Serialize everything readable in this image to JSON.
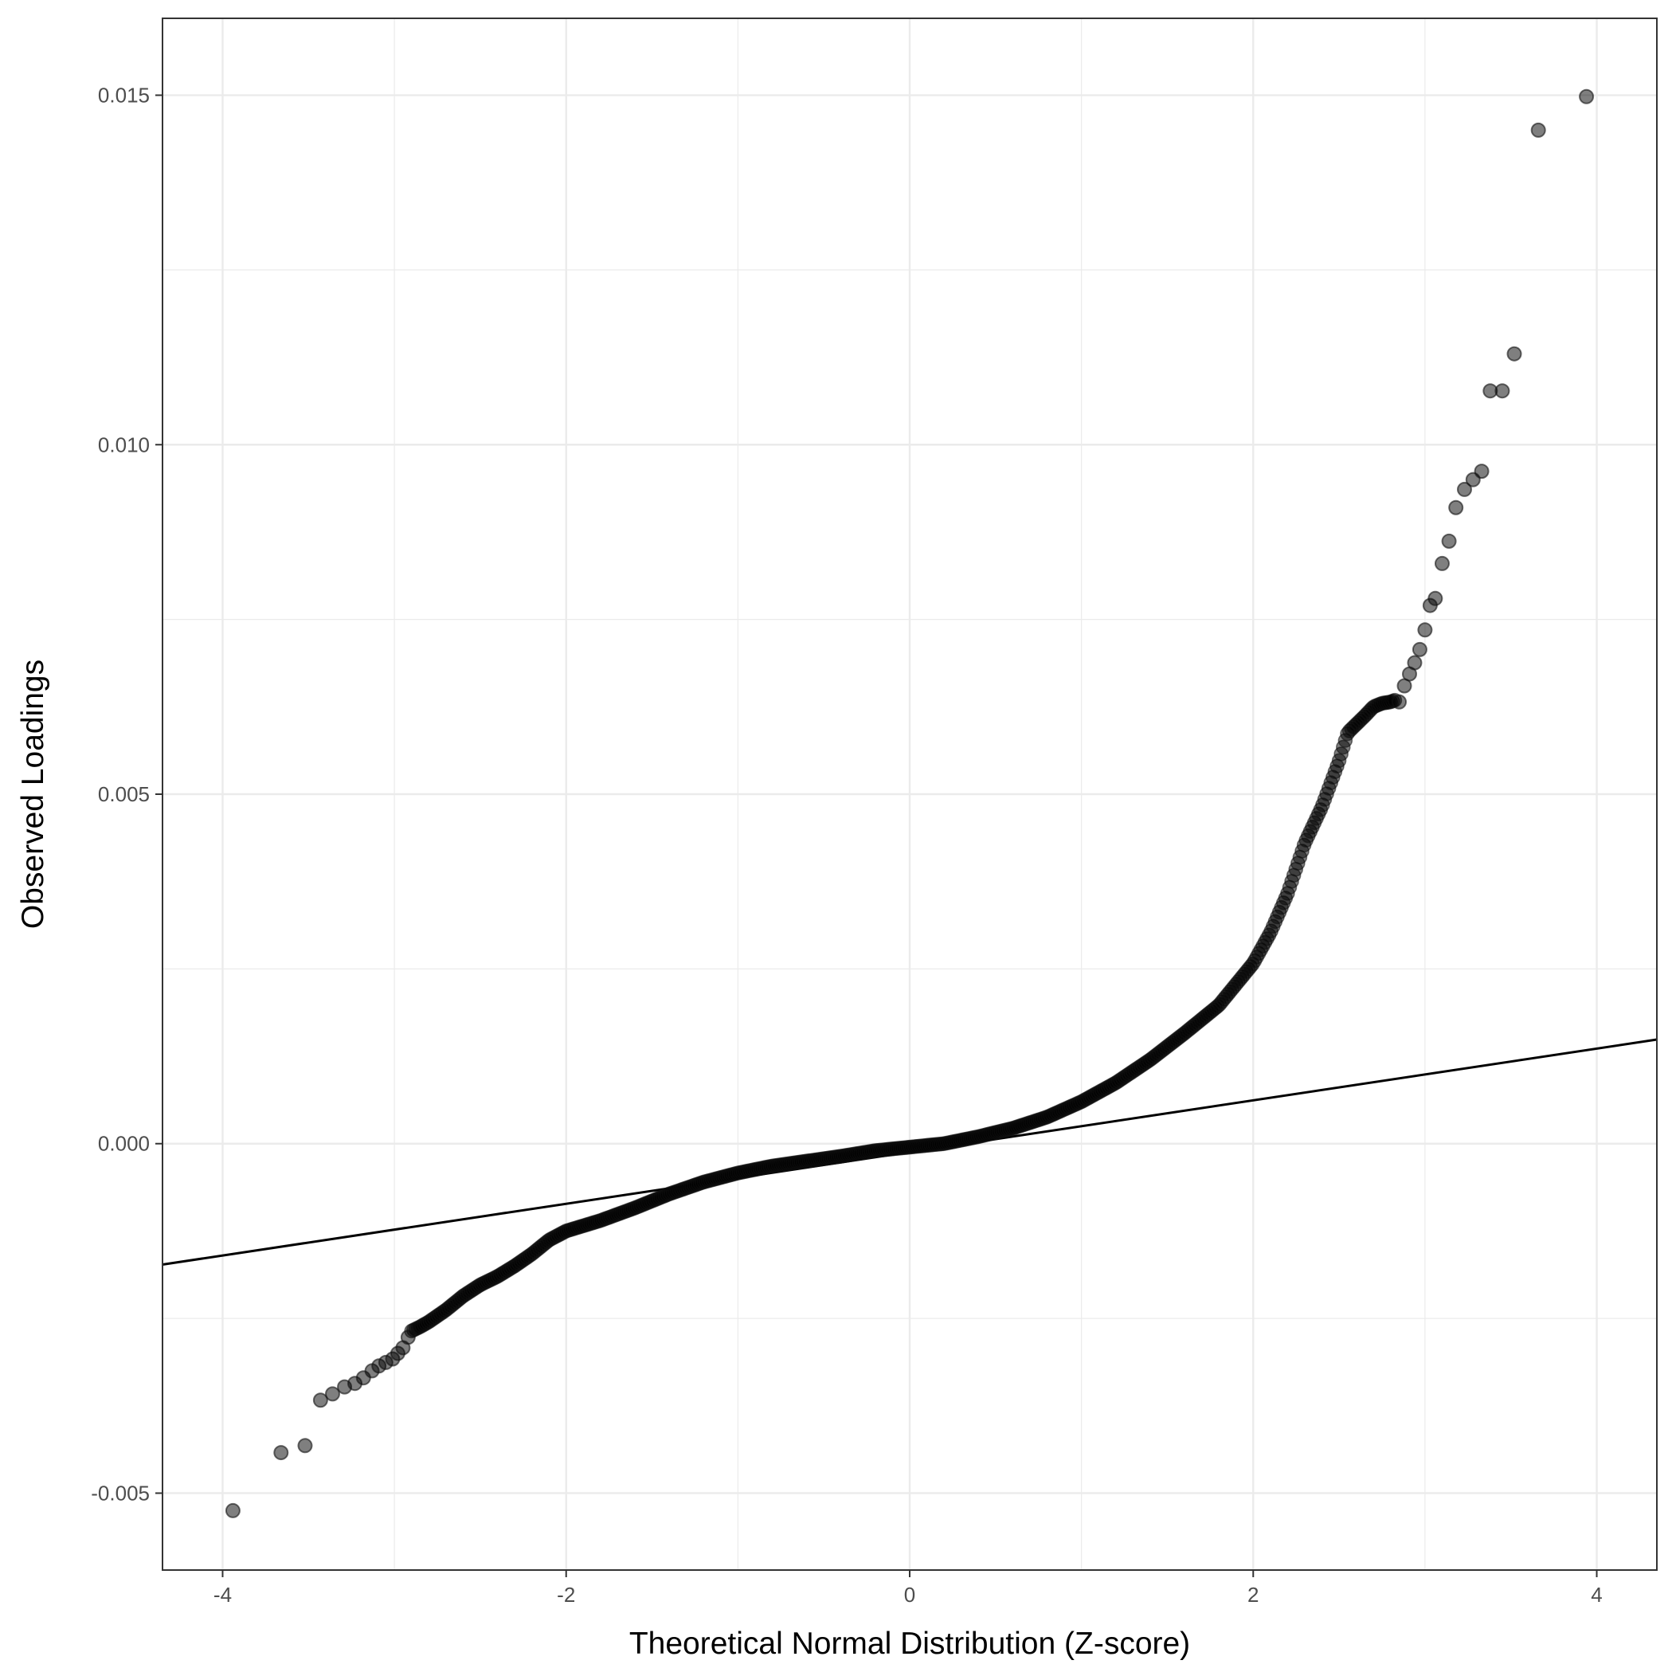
{
  "chart_data": {
    "type": "scatter",
    "title": "",
    "xlabel": "Theoretical Normal Distribution (Z-score)",
    "ylabel": "Observed Loadings",
    "xlim": [
      -4.35,
      4.35
    ],
    "ylim": [
      -0.0061,
      0.0161
    ],
    "x_ticks": [
      -4,
      -2,
      0,
      2,
      4
    ],
    "x_tick_labels": [
      "-4",
      "-2",
      "0",
      "2",
      "4"
    ],
    "y_ticks": [
      -0.005,
      0.0,
      0.005,
      0.01,
      0.015
    ],
    "y_tick_labels": [
      "-0.005",
      "0.000",
      "0.005",
      "0.010",
      "0.015"
    ],
    "grid": true,
    "theme": "black-and-white",
    "colors": {
      "points": "#000000",
      "line": "#000000",
      "grid": "#ebebeb",
      "panel_border": "#333333"
    },
    "reference_line": {
      "intercept": -0.00012,
      "slope": 0.00037
    },
    "series": [
      {
        "x": [
          -3.94,
          -3.66,
          -3.52,
          -3.43,
          -3.36,
          -3.29,
          -3.23,
          -3.18,
          -3.13,
          -3.09,
          -3.05,
          -3.01,
          -2.98,
          -2.95,
          -2.92
        ],
        "y": [
          -0.00525,
          -0.00442,
          -0.00432,
          -0.00367,
          -0.00358,
          -0.00348,
          -0.00343,
          -0.00335,
          -0.00325,
          -0.00318,
          -0.00313,
          -0.00308,
          -0.003,
          -0.00292,
          -0.00277
        ]
      },
      {
        "x": [
          2.85,
          2.88,
          2.91,
          2.94,
          2.97,
          3.0,
          3.03,
          3.06,
          3.1,
          3.14,
          3.18,
          3.23,
          3.28,
          3.33,
          3.38,
          3.45,
          3.52,
          3.66,
          3.94
        ],
        "y": [
          0.00632,
          0.00655,
          0.00672,
          0.00688,
          0.00707,
          0.00735,
          0.0077,
          0.0078,
          0.0083,
          0.00862,
          0.0091,
          0.00936,
          0.0095,
          0.00962,
          0.01077,
          0.01077,
          0.0113,
          0.0145,
          0.01498
        ]
      }
    ],
    "dense_curve": {
      "x": [
        -2.9,
        -2.85,
        -2.8,
        -2.7,
        -2.6,
        -2.5,
        -2.4,
        -2.3,
        -2.2,
        -2.1,
        -2.0,
        -1.8,
        -1.6,
        -1.4,
        -1.2,
        -1.0,
        -0.8,
        -0.6,
        -0.4,
        -0.2,
        0.0,
        0.2,
        0.4,
        0.6,
        0.8,
        1.0,
        1.2,
        1.4,
        1.6,
        1.8,
        2.0,
        2.1,
        2.2,
        2.3,
        2.4,
        2.5,
        2.55,
        2.6,
        2.65,
        2.7,
        2.75,
        2.8,
        2.83
      ],
      "y": [
        -0.00268,
        -0.00262,
        -0.00255,
        -0.00238,
        -0.00218,
        -0.00202,
        -0.0019,
        -0.00175,
        -0.00158,
        -0.00138,
        -0.00125,
        -0.0011,
        -0.00092,
        -0.00072,
        -0.00055,
        -0.00042,
        -0.00032,
        -0.00025,
        -0.00018,
        -0.0001,
        -5e-05,
        0.0,
        0.0001,
        0.00022,
        0.00038,
        0.0006,
        0.00087,
        0.0012,
        0.00158,
        0.00198,
        0.00258,
        0.00302,
        0.00358,
        0.0043,
        0.00482,
        0.00548,
        0.00588,
        0.006,
        0.00612,
        0.00625,
        0.0063,
        0.00632,
        0.00635
      ]
    }
  }
}
